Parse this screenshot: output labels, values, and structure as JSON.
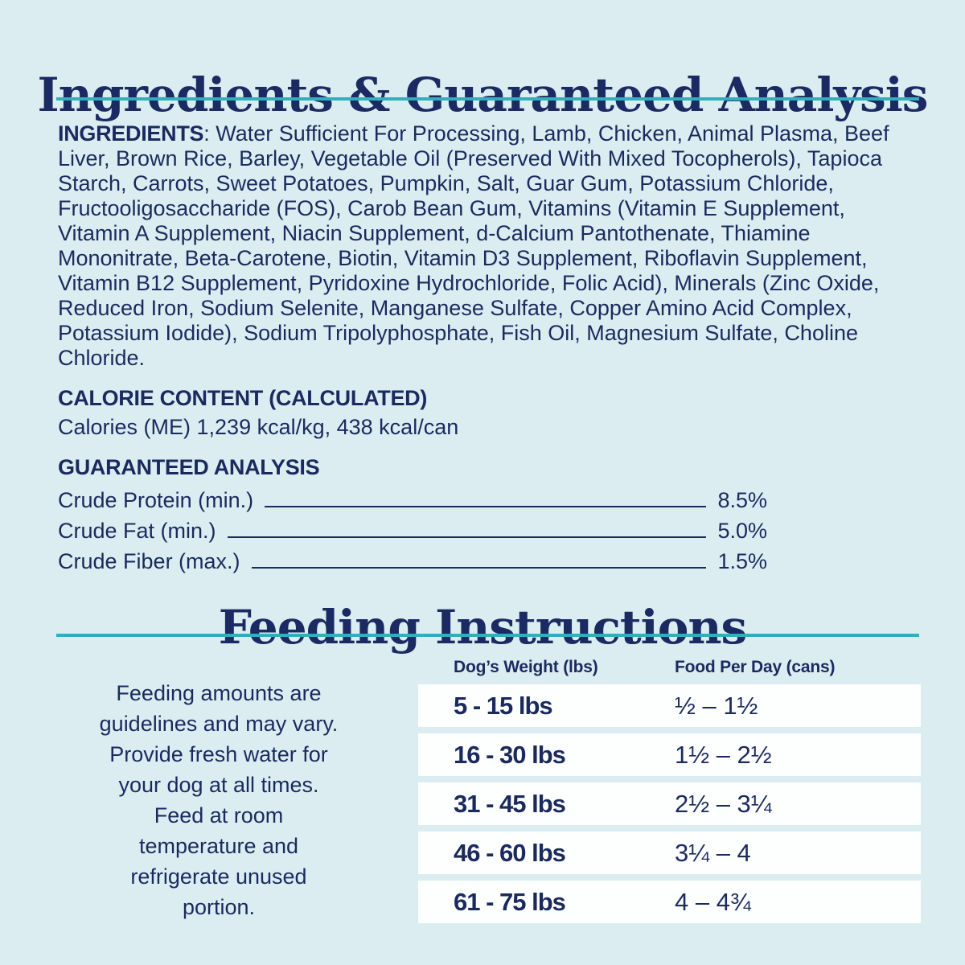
{
  "page": {
    "background_color": "#dbedf1",
    "text_color": "#1b2a5e",
    "accent_teal": "#2fb0bc",
    "row_white": "#fdfefe"
  },
  "ingredients_section": {
    "title": "Ingredients & Guaranteed Analysis",
    "ingredients_label": "INGREDIENTS",
    "ingredients_text": ": Water Sufficient For Processing, Lamb, Chicken, Animal Plasma, Beef Liver, Brown Rice, Barley, Vegetable Oil (Preserved With Mixed Tocopherols), Tapioca Starch, Carrots, Sweet Potatoes, Pumpkin, Salt, Guar Gum, Potassium Chloride, Fructooligosaccharide (FOS), Carob Bean Gum, Vitamins (Vitamin E Supplement, Vitamin A Supplement, Niacin Supplement, d-Calcium Pantothenate, Thiamine Mononitrate, Beta-Carotene, Biotin, Vitamin D3 Supplement, Riboflavin Supplement, Vitamin B12 Supplement, Pyridoxine Hydrochloride, Folic Acid), Minerals (Zinc Oxide, Reduced Iron, Sodium Selenite, Manganese Sulfate, Copper Amino Acid Complex, Potassium Iodide), Sodium Tripolyphosphate, Fish Oil, Magnesium Sulfate, Choline Chloride.",
    "calorie_heading": "CALORIE CONTENT (CALCULATED)",
    "calorie_line": "Calories (ME) 1,239 kcal/kg, 438 kcal/can",
    "analysis_heading": "GUARANTEED ANALYSIS",
    "analysis_rows": [
      {
        "label": "Crude Protein (min.)",
        "value": "8.5%"
      },
      {
        "label": "Crude Fat (min.)",
        "value": "5.0%"
      },
      {
        "label": "Crude Fiber (max.)",
        "value": "1.5%"
      }
    ]
  },
  "feeding_section": {
    "title": "Feeding Instructions",
    "note": "Feeding amounts are\nguidelines and may vary.\nProvide fresh water for\nyour dog at all times.\nFeed at room\ntemperature and\nrefrigerate unused\nportion.",
    "table": {
      "col1_header": "Dog’s Weight (lbs)",
      "col2_header": "Food Per Day (cans)",
      "rows": [
        {
          "weight": "5 - 15 lbs",
          "food": "½ – 1½"
        },
        {
          "weight": "16 - 30 lbs",
          "food": "1½ – 2½"
        },
        {
          "weight": "31 - 45 lbs",
          "food": "2½ – 3¼"
        },
        {
          "weight": "46 - 60 lbs",
          "food": "3¼ – 4"
        },
        {
          "weight": "61 - 75 lbs",
          "food": "4 – 4¾"
        }
      ]
    }
  }
}
